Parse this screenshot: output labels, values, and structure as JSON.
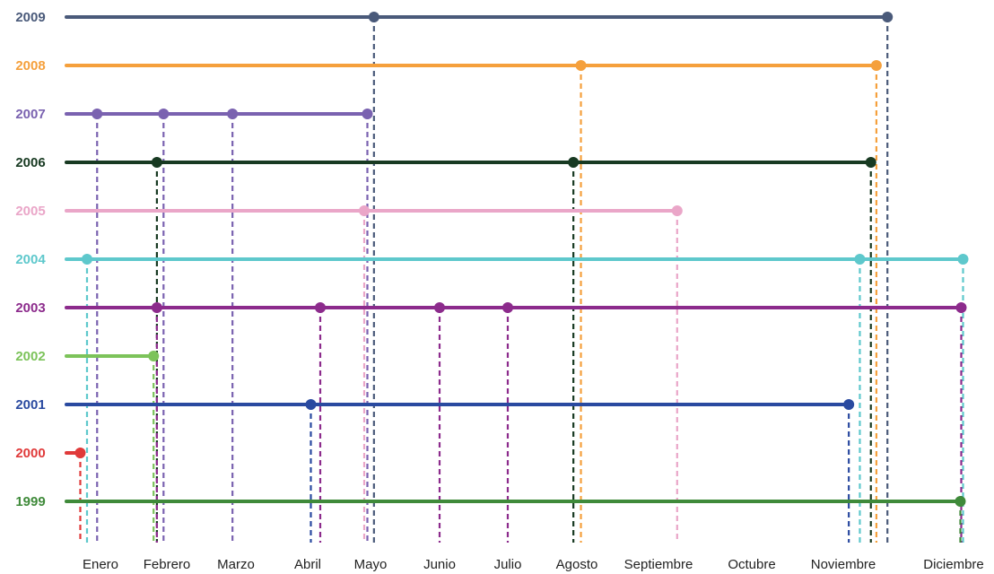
{
  "chart_data": {
    "type": "line",
    "months": [
      "Enero",
      "Febrero",
      "Marzo",
      "Abril",
      "Mayo",
      "Junio",
      "Julio",
      "Agosto",
      "Septiembre",
      "Octubre",
      "Noviembre",
      "Diciembre"
    ],
    "years": [
      {
        "year": "2009",
        "color": "#4a5a7a",
        "points": [
          5.05,
          11.4
        ]
      },
      {
        "year": "2008",
        "color": "#f5a03c",
        "points": [
          8.05,
          11.3
        ]
      },
      {
        "year": "2007",
        "color": "#7a62b0",
        "points": [
          0.95,
          1.95,
          2.95,
          4.95
        ]
      },
      {
        "year": "2006",
        "color": "#183a22",
        "points": [
          1.85,
          7.95,
          11.25
        ]
      },
      {
        "year": "2005",
        "color": "#eaa6c8",
        "points": [
          4.9,
          9.2
        ]
      },
      {
        "year": "2004",
        "color": "#5ec8cc",
        "points": [
          0.8,
          11.15,
          13.05
        ]
      },
      {
        "year": "2003",
        "color": "#8c2b8c",
        "points": [
          1.85,
          4.2,
          6.0,
          7.0,
          12.85
        ]
      },
      {
        "year": "2002",
        "color": "#7cc35a",
        "points": [
          1.8
        ]
      },
      {
        "year": "2001",
        "color": "#2a4aa0",
        "points": [
          4.05,
          11.05
        ]
      },
      {
        "year": "2000",
        "color": "#e03a3a",
        "points": [
          0.7
        ]
      },
      {
        "year": "1999",
        "color": "#3f8a3a",
        "points": [
          12.75
        ]
      }
    ]
  }
}
